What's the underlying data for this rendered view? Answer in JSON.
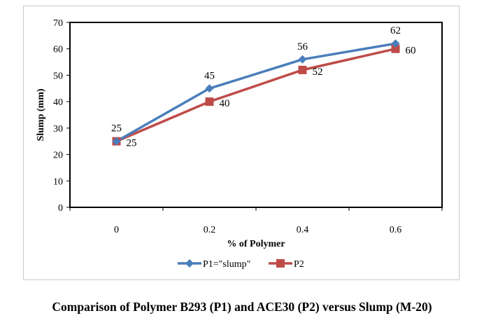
{
  "chart_data": {
    "type": "line",
    "title": "Comparison of Polymer B293 (P1) and ACE30 (P2) versus Slump (M-20)",
    "xlabel": "% of Polymer",
    "ylabel": "Slump (mm)",
    "categories": [
      "0",
      "0.2",
      "0.4",
      "0.6"
    ],
    "ylim": [
      0,
      70
    ],
    "yticks": [
      0,
      10,
      20,
      30,
      40,
      50,
      60,
      70
    ],
    "grid": false,
    "legend_position": "bottom",
    "series": [
      {
        "name": "P1=\"slump\"",
        "values": [
          25,
          45,
          56,
          62
        ],
        "color": "#4a7ebb",
        "marker": "diamond"
      },
      {
        "name": "P2",
        "values": [
          25,
          40,
          52,
          60
        ],
        "color": "#be4b48",
        "marker": "square"
      }
    ]
  }
}
